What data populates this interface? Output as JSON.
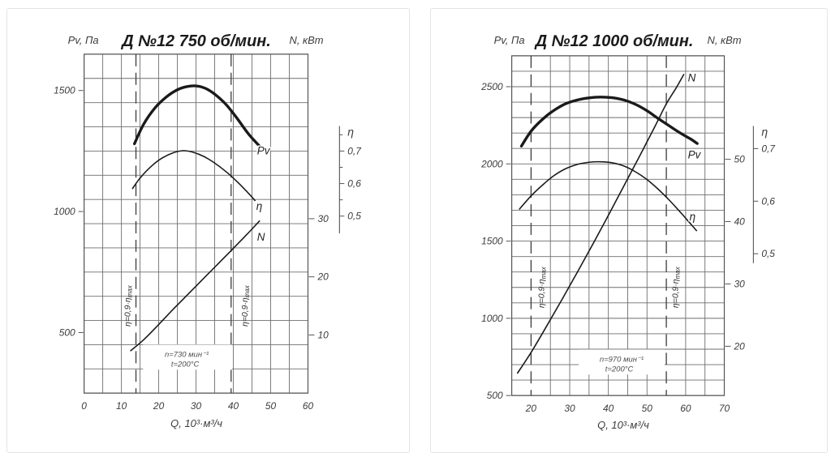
{
  "chart_data": [
    {
      "type": "line",
      "title": "Д №12 750 об/мин.",
      "y_left_label": "Pv, Па",
      "y_right_label": "N, кВт",
      "x_label": "Q, 10³·м³/ч",
      "x_axis": {
        "min": 0,
        "max": 60,
        "grid_step": 5,
        "ticks": [
          0,
          10,
          20,
          30,
          40,
          50,
          60
        ]
      },
      "pv_axis": {
        "min": 250,
        "max": 1650,
        "grid_step": 100,
        "ticks": [
          500,
          1000,
          1500
        ]
      },
      "n_axis": {
        "min": 0,
        "max": 58.3,
        "ticks": [
          10,
          20,
          30
        ]
      },
      "eta_axis": {
        "title": "η",
        "top": 0.777,
        "bottom": 0.447,
        "ticks": [
          {
            "v": 0.7,
            "label": "0,7"
          },
          {
            "v": 0.6,
            "label": "0,6"
          },
          {
            "v": 0.5,
            "label": "0,5"
          }
        ],
        "minor": [
          0.75,
          0.65,
          0.55
        ]
      },
      "eta_boundary": {
        "q": [
          13.9,
          39.4
        ],
        "main": "η=0,9·η",
        "sub": "max"
      },
      "annotation": [
        "n=730 мин⁻¹",
        "t=200°C"
      ],
      "series": [
        {
          "name": "Pv",
          "label": "Pv",
          "axis": "pv",
          "points": [
            [
              13.5,
              1280
            ],
            [
              16,
              1362
            ],
            [
              19,
              1428
            ],
            [
              22,
              1473
            ],
            [
              25,
              1503
            ],
            [
              27.5,
              1516
            ],
            [
              30,
              1519
            ],
            [
              32.5,
              1509
            ],
            [
              35,
              1485
            ],
            [
              38,
              1443
            ],
            [
              41,
              1385
            ],
            [
              44,
              1322
            ],
            [
              47,
              1270
            ]
          ]
        },
        {
          "name": "eta",
          "label": "η",
          "axis": "eta",
          "points": [
            [
              13,
              0.585
            ],
            [
              15,
              0.617
            ],
            [
              18,
              0.653
            ],
            [
              21,
              0.679
            ],
            [
              24,
              0.695
            ],
            [
              26.5,
              0.701
            ],
            [
              29,
              0.697
            ],
            [
              32,
              0.684
            ],
            [
              35,
              0.663
            ],
            [
              38,
              0.637
            ],
            [
              41,
              0.606
            ],
            [
              43.5,
              0.577
            ],
            [
              45.8,
              0.548
            ]
          ]
        },
        {
          "name": "N",
          "label": "N",
          "axis": "n",
          "points": [
            [
              12.5,
              7.3
            ],
            [
              16,
              9.2
            ],
            [
              20,
              11.8
            ],
            [
              24,
              14.5
            ],
            [
              28,
              17.1
            ],
            [
              32,
              19.7
            ],
            [
              36,
              22.3
            ],
            [
              40,
              24.9
            ],
            [
              43.5,
              27.2
            ],
            [
              47,
              29.6
            ]
          ]
        }
      ]
    },
    {
      "type": "line",
      "title": "Д №12 1000 об/мин.",
      "y_left_label": "Pv, Па",
      "y_right_label": "N, кВт",
      "x_label": "Q, 10³·м³/ч",
      "x_axis": {
        "min": 15,
        "max": 70,
        "grid_step": 5,
        "ticks": [
          20,
          30,
          40,
          50,
          60,
          70
        ]
      },
      "pv_axis": {
        "min": 500,
        "max": 2700,
        "grid_step": 100,
        "ticks": [
          500,
          1000,
          1500,
          2000,
          2500
        ]
      },
      "n_axis": {
        "min": 12.1,
        "max": 66.6,
        "ticks": [
          20,
          30,
          40,
          50
        ]
      },
      "eta_axis": {
        "title": "η",
        "top": 0.743,
        "bottom": 0.482,
        "ticks": [
          {
            "v": 0.7,
            "label": "0,7"
          },
          {
            "v": 0.6,
            "label": "0,6"
          },
          {
            "v": 0.5,
            "label": "0,5"
          }
        ],
        "minor": []
      },
      "eta_boundary": {
        "q": [
          20,
          55
        ],
        "main": "η=0,9·η",
        "sub": "max"
      },
      "annotation": [
        "n=970 мин⁻¹",
        "t=200°C"
      ],
      "series": [
        {
          "name": "Pv",
          "label": "Pv",
          "axis": "pv",
          "points": [
            [
              17.5,
              2115
            ],
            [
              20,
              2212
            ],
            [
              23,
              2290
            ],
            [
              26,
              2348
            ],
            [
              29,
              2390
            ],
            [
              32,
              2414
            ],
            [
              35,
              2428
            ],
            [
              38,
              2433
            ],
            [
              41,
              2429
            ],
            [
              44,
              2414
            ],
            [
              47,
              2386
            ],
            [
              50,
              2344
            ],
            [
              53,
              2292
            ],
            [
              56,
              2242
            ],
            [
              59,
              2194
            ],
            [
              61.5,
              2158
            ],
            [
              63,
              2132
            ]
          ]
        },
        {
          "name": "eta",
          "label": "η",
          "axis": "eta",
          "points": [
            [
              17,
              0.585
            ],
            [
              20,
              0.61
            ],
            [
              23,
              0.631
            ],
            [
              26,
              0.649
            ],
            [
              29,
              0.662
            ],
            [
              32,
              0.67
            ],
            [
              35,
              0.674
            ],
            [
              38,
              0.675
            ],
            [
              41,
              0.673
            ],
            [
              44,
              0.667
            ],
            [
              47,
              0.656
            ],
            [
              50,
              0.641
            ],
            [
              53,
              0.622
            ],
            [
              56,
              0.6
            ],
            [
              59,
              0.576
            ],
            [
              61.5,
              0.555
            ],
            [
              62.8,
              0.544
            ]
          ]
        },
        {
          "name": "N",
          "label": "N",
          "axis": "n",
          "points": [
            [
              16.5,
              15.7
            ],
            [
              20,
              19.0
            ],
            [
              24,
              23.2
            ],
            [
              28,
              27.5
            ],
            [
              32,
              31.9
            ],
            [
              36,
              36.4
            ],
            [
              40,
              41.0
            ],
            [
              44,
              45.7
            ],
            [
              48,
              50.4
            ],
            [
              52,
              55.2
            ],
            [
              55,
              58.9
            ],
            [
              57.5,
              61.4
            ],
            [
              59.5,
              63.6
            ]
          ]
        }
      ]
    }
  ],
  "colors": {
    "curve": "#1a1a1a",
    "grid": "#6e6e6e",
    "text": "#333333",
    "card_border": "#e4e4e4"
  }
}
